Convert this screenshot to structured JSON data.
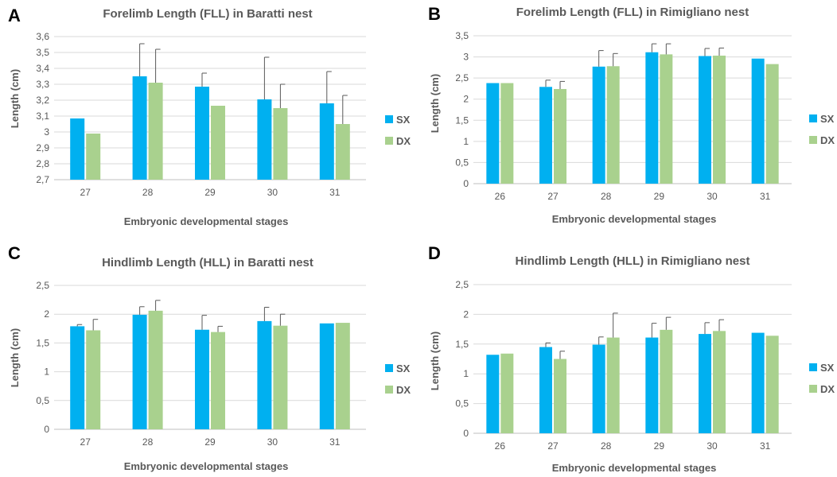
{
  "colors": {
    "sx": "#00b0f0",
    "dx": "#a9d18e"
  },
  "chart_data": [
    {
      "letter": "A",
      "type": "bar",
      "title": "Forelimb Length (FLL) in Baratti nest",
      "xlabel": "Embryonic developmental stages",
      "ylabel": "Length (cm)",
      "ylim": [
        2.7,
        3.6
      ],
      "yticks": [
        2.7,
        2.8,
        2.9,
        3.0,
        3.1,
        3.2,
        3.3,
        3.4,
        3.5,
        3.6
      ],
      "ytick_labels": [
        "2,7",
        "2,8",
        "2,9",
        "3",
        "3,1",
        "3,2",
        "3,3",
        "3,4",
        "3,5",
        "3,6"
      ],
      "categories": [
        "27",
        "28",
        "29",
        "30",
        "31"
      ],
      "series": [
        {
          "name": "SX",
          "values": [
            3.085,
            3.35,
            3.285,
            3.205,
            3.18
          ],
          "errors": [
            null,
            0.205,
            0.085,
            0.265,
            0.2
          ]
        },
        {
          "name": "DX",
          "values": [
            2.99,
            3.31,
            3.165,
            3.15,
            3.05
          ],
          "errors": [
            null,
            0.21,
            null,
            0.15,
            0.18
          ]
        }
      ],
      "legend": "right",
      "grid": true
    },
    {
      "letter": "B",
      "type": "bar",
      "title": "Forelimb Length (FLL) in Rimigliano nest",
      "xlabel": "Embryonic developmental stages",
      "ylabel": "Length (cm)",
      "ylim": [
        0,
        3.5
      ],
      "yticks": [
        0,
        0.5,
        1,
        1.5,
        2,
        2.5,
        3,
        3.5
      ],
      "ytick_labels": [
        "0",
        "0,5",
        "1",
        "1,5",
        "2",
        "2,5",
        "3",
        "3,5"
      ],
      "categories": [
        "26",
        "27",
        "28",
        "29",
        "30",
        "31"
      ],
      "series": [
        {
          "name": "SX",
          "values": [
            2.38,
            2.29,
            2.77,
            3.11,
            3.02,
            2.96
          ],
          "errors": [
            null,
            0.16,
            0.38,
            0.2,
            0.18,
            null
          ]
        },
        {
          "name": "DX",
          "values": [
            2.38,
            2.24,
            2.78,
            3.06,
            3.03,
            2.83
          ],
          "errors": [
            null,
            0.18,
            0.3,
            0.25,
            0.18,
            null
          ]
        }
      ],
      "legend": "right",
      "grid": true
    },
    {
      "letter": "C",
      "type": "bar",
      "title": "Hindlimb Length (HLL) in Baratti nest",
      "xlabel": "Embryonic developmental stages",
      "ylabel": "Length (cm)",
      "ylim": [
        0,
        2.5
      ],
      "yticks": [
        0,
        0.5,
        1,
        1.5,
        2,
        2.5
      ],
      "ytick_labels": [
        "0",
        "0,5",
        "1",
        "1,5",
        "2",
        "2,5"
      ],
      "categories": [
        "27",
        "28",
        "29",
        "30",
        "31"
      ],
      "series": [
        {
          "name": "SX",
          "values": [
            1.79,
            1.99,
            1.73,
            1.88,
            1.84
          ],
          "errors": [
            0.03,
            0.14,
            0.25,
            0.24,
            null
          ]
        },
        {
          "name": "DX",
          "values": [
            1.72,
            2.06,
            1.69,
            1.8,
            1.85
          ],
          "errors": [
            0.19,
            0.18,
            0.1,
            0.2,
            null
          ]
        }
      ],
      "legend": "right",
      "grid": true
    },
    {
      "letter": "D",
      "type": "bar",
      "title": "Hindlimb Length (HLL) in Rimigliano nest",
      "xlabel": "Embryonic developmental stages",
      "ylabel": "Length (cm)",
      "ylim": [
        0,
        2.5
      ],
      "yticks": [
        0,
        0.5,
        1,
        1.5,
        2,
        2.5
      ],
      "ytick_labels": [
        "0",
        "0,5",
        "1",
        "1,5",
        "2",
        "2,5"
      ],
      "categories": [
        "26",
        "27",
        "28",
        "29",
        "30",
        "31"
      ],
      "series": [
        {
          "name": "SX",
          "values": [
            1.32,
            1.45,
            1.49,
            1.61,
            1.67,
            1.69
          ],
          "errors": [
            null,
            0.07,
            0.13,
            0.24,
            0.19,
            null
          ]
        },
        {
          "name": "DX",
          "values": [
            1.34,
            1.25,
            1.61,
            1.74,
            1.72,
            1.64
          ],
          "errors": [
            null,
            0.13,
            0.41,
            0.21,
            0.19,
            null
          ]
        }
      ],
      "legend": "right",
      "grid": true
    }
  ]
}
